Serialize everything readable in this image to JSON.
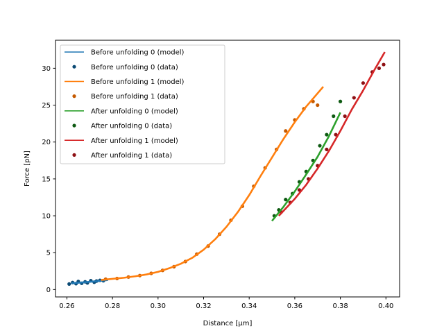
{
  "chart_data": {
    "type": "scatter",
    "title": "",
    "xlabel": "Distance [μm]",
    "ylabel": "Force [pN]",
    "xlim": [
      0.255,
      0.406
    ],
    "ylim": [
      -1.0,
      33.8
    ],
    "x_ticks": [
      0.26,
      0.28,
      0.3,
      0.32,
      0.34,
      0.36,
      0.38,
      0.4
    ],
    "x_tick_labels": [
      "0.26",
      "0.28",
      "0.30",
      "0.32",
      "0.34",
      "0.36",
      "0.38",
      "0.40"
    ],
    "y_ticks": [
      0,
      5,
      10,
      15,
      20,
      25,
      30
    ],
    "y_tick_labels": [
      "0",
      "5",
      "10",
      "15",
      "20",
      "25",
      "30"
    ],
    "grid": false,
    "legend_position": "top-left",
    "series": [
      {
        "name": "Before unfolding 0 (model)",
        "kind": "line",
        "color": "#1f77b4",
        "x": [
          0.262,
          0.266,
          0.27,
          0.274,
          0.278
        ],
        "y": [
          0.85,
          0.95,
          1.05,
          1.15,
          1.3
        ]
      },
      {
        "name": "Before unfolding 0 (data)",
        "kind": "scatter",
        "color": "#0b4a74",
        "x": [
          0.261,
          0.2625,
          0.264,
          0.265,
          0.2665,
          0.268,
          0.269,
          0.2705,
          0.272,
          0.273,
          0.2745,
          0.276
        ],
        "y": [
          0.75,
          0.95,
          0.8,
          1.1,
          0.85,
          1.05,
          0.9,
          1.2,
          1.0,
          1.15,
          1.25,
          1.2
        ]
      },
      {
        "name": "Before unfolding 1 (model)",
        "kind": "line",
        "color": "#ff7f0e",
        "x": [
          0.275,
          0.28,
          0.285,
          0.29,
          0.295,
          0.3,
          0.305,
          0.31,
          0.315,
          0.32,
          0.325,
          0.33,
          0.335,
          0.34,
          0.345,
          0.35,
          0.355,
          0.36,
          0.365,
          0.3725
        ],
        "y": [
          1.3,
          1.45,
          1.6,
          1.8,
          2.05,
          2.4,
          2.9,
          3.5,
          4.3,
          5.4,
          6.8,
          8.5,
          10.5,
          12.8,
          15.4,
          17.9,
          20.4,
          22.7,
          24.8,
          27.5
        ]
      },
      {
        "name": "Before unfolding 1 (data)",
        "kind": "scatter",
        "color": "#c55a00",
        "x": [
          0.277,
          0.282,
          0.287,
          0.292,
          0.297,
          0.302,
          0.307,
          0.312,
          0.317,
          0.322,
          0.327,
          0.332,
          0.337,
          0.342,
          0.347,
          0.352,
          0.356,
          0.36,
          0.364,
          0.368,
          0.37
        ],
        "y": [
          1.4,
          1.5,
          1.7,
          1.9,
          2.2,
          2.6,
          3.1,
          3.8,
          4.8,
          5.9,
          7.5,
          9.4,
          11.3,
          14.0,
          16.5,
          19.0,
          21.5,
          23.0,
          24.5,
          25.5,
          25.0
        ]
      },
      {
        "name": "After unfolding 0 (model)",
        "kind": "line",
        "color": "#2ca02c",
        "x": [
          0.35,
          0.355,
          0.36,
          0.365,
          0.37,
          0.375,
          0.38
        ],
        "y": [
          9.3,
          11.2,
          13.3,
          15.6,
          18.0,
          20.8,
          24.0
        ]
      },
      {
        "name": "After unfolding 0 (data)",
        "kind": "scatter",
        "color": "#0e5a12",
        "x": [
          0.351,
          0.353,
          0.356,
          0.359,
          0.362,
          0.365,
          0.368,
          0.371,
          0.374,
          0.377,
          0.38
        ],
        "y": [
          10.0,
          10.8,
          12.2,
          13.0,
          14.6,
          16.0,
          17.5,
          19.5,
          21.0,
          23.5,
          25.5
        ]
      },
      {
        "name": "After unfolding 1 (model)",
        "kind": "line",
        "color": "#d62728",
        "x": [
          0.353,
          0.36,
          0.365,
          0.37,
          0.375,
          0.38,
          0.385,
          0.39,
          0.395,
          0.3995
        ],
        "y": [
          10.0,
          12.3,
          14.2,
          16.4,
          18.8,
          21.5,
          24.4,
          27.0,
          29.8,
          32.2
        ]
      },
      {
        "name": "After unfolding 1 (data)",
        "kind": "scatter",
        "color": "#8e1014",
        "x": [
          0.354,
          0.358,
          0.362,
          0.366,
          0.37,
          0.374,
          0.378,
          0.382,
          0.386,
          0.39,
          0.394,
          0.397,
          0.399
        ],
        "y": [
          10.5,
          11.8,
          13.5,
          15.0,
          16.8,
          19.0,
          21.0,
          23.5,
          26.0,
          28.0,
          29.5,
          30.0,
          30.5
        ]
      }
    ]
  }
}
